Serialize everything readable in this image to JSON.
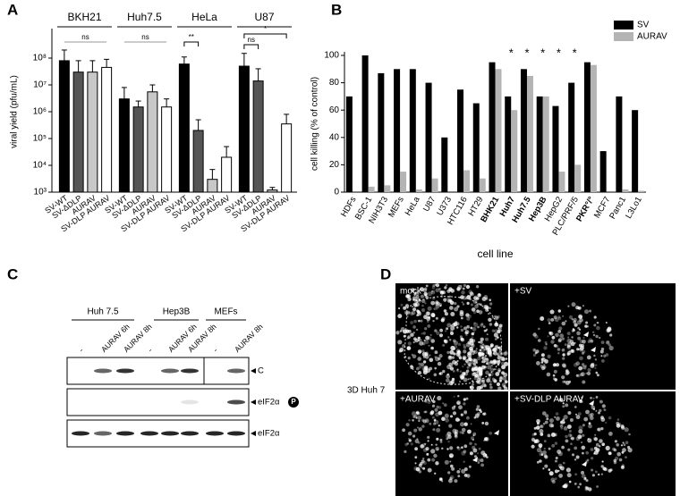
{
  "chart_data": [
    {
      "type": "bar",
      "panel": "A",
      "ylabel": "viral yield (pfu/mL)",
      "log_scale": true,
      "groups": [
        "BKH21",
        "Huh7.5",
        "HeLa",
        "U87"
      ],
      "categories": [
        "SV-WT",
        "SV-ΔDLP",
        "AURAV",
        "SV-DLP AURAV",
        "SV-WT",
        "SV-ΔDLP",
        "AURAV",
        "SV-DLP AURAV",
        "SV-WT",
        "SV-ΔDLP",
        "AURAV",
        "SV-DLP AURAV",
        "SV-WT",
        "SV-ΔDLP",
        "AURAV",
        "SV-DLP AURAV"
      ],
      "values": [
        80000000,
        30000000,
        30000000,
        45000000,
        3000000,
        1500000,
        5500000,
        1500000,
        60000000,
        200000,
        3000,
        20000,
        50000000,
        14000000,
        1200,
        350000
      ],
      "errors": [
        120000000,
        50000000,
        50000000,
        45000000,
        5000000,
        1000000,
        4500000,
        1500000,
        50000000,
        300000,
        4000,
        30000,
        100000000,
        26000000,
        300,
        450000
      ],
      "colors": [
        "#000000",
        "#555555",
        "#c8c8c8",
        "#ffffff",
        "#000000",
        "#555555",
        "#c8c8c8",
        "#ffffff",
        "#000000",
        "#555555",
        "#c8c8c8",
        "#ffffff",
        "#000000",
        "#555555",
        "#c8c8c8",
        "#ffffff"
      ],
      "ylim": [
        1000,
        1000000000
      ],
      "yticks": [
        {
          "value": 1000,
          "label": "10³"
        },
        {
          "value": 10000,
          "label": "10⁴"
        },
        {
          "value": 100000,
          "label": "10⁵"
        },
        {
          "value": 1000000,
          "label": "10⁶"
        },
        {
          "value": 10000000,
          "label": "10⁷"
        },
        {
          "value": 100000000,
          "label": "10⁸"
        }
      ],
      "annotations": [
        {
          "text": "ns",
          "from": 0,
          "to": 3
        },
        {
          "text": "ns",
          "from": 4,
          "to": 7
        },
        {
          "text": "**",
          "from": 8,
          "to": 9
        },
        {
          "text": "ns",
          "from": 12,
          "to": 13
        },
        {
          "text": "*",
          "from": 12,
          "to": 15
        }
      ]
    },
    {
      "type": "grouped_bar",
      "panel": "B",
      "ylabel": "cell killing (% of control)",
      "xlabel": "cell line",
      "categories": [
        "HDFs",
        "BSC-1",
        "NIH3T3",
        "MEFs",
        "HeLa",
        "U87",
        "U373",
        "HTC116",
        "HT29",
        "BHK21",
        "Huh7",
        "Huh7.5",
        "Hep3B",
        "HepG2",
        "PLC/PRF/5",
        "PKR°/°",
        "MCF7",
        "Panc1",
        "L3Lo1"
      ],
      "bold": [
        false,
        false,
        false,
        false,
        false,
        false,
        false,
        false,
        false,
        true,
        true,
        true,
        true,
        false,
        false,
        true,
        false,
        false,
        false
      ],
      "markers": [
        null,
        null,
        null,
        null,
        null,
        null,
        null,
        null,
        null,
        null,
        "*",
        "*",
        "*",
        "*",
        "*",
        null,
        null,
        null,
        null
      ],
      "series": [
        {
          "name": "SV",
          "color": "#000000",
          "values": [
            70,
            100,
            87,
            90,
            90,
            80,
            40,
            75,
            65,
            95,
            70,
            90,
            70,
            63,
            80,
            95,
            30,
            70,
            60
          ]
        },
        {
          "name": "AURAV",
          "color": "#b4b4b4",
          "values": [
            0,
            4,
            5,
            15,
            2,
            10,
            0,
            16,
            10,
            90,
            60,
            85,
            70,
            15,
            20,
            93,
            0,
            2,
            1
          ]
        }
      ],
      "ylim": [
        0,
        100
      ],
      "yticks": [
        0,
        20,
        40,
        60,
        80,
        100
      ],
      "legend": "upper-right"
    }
  ],
  "blot": {
    "panel": "C",
    "groups": [
      "Huh 7.5",
      "Hep3B",
      "MEFs"
    ],
    "lanes": [
      "-",
      "AURAV 6h",
      "AURAV 8h",
      "-",
      "AURAV 6h",
      "AURAV 8h",
      "-",
      "AURAV 8h"
    ],
    "rows": [
      "C",
      "eIF2α",
      "eIF2α"
    ],
    "phospho": "P"
  },
  "microscopy": {
    "panel": "D",
    "label": "3D Huh 7",
    "images": [
      "mock",
      "+SV",
      "+AURAV",
      "+SV-DLP AURAV"
    ]
  }
}
